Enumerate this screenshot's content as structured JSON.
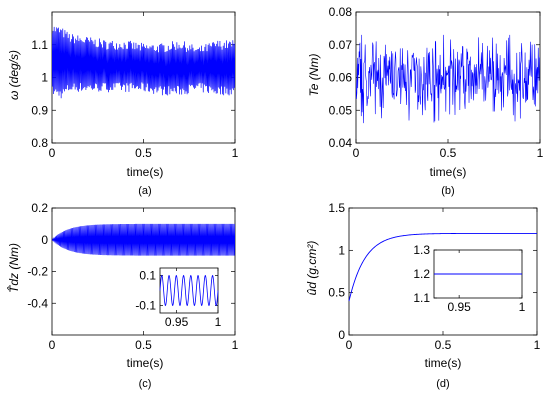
{
  "chart_data": [
    {
      "id": "a",
      "type": "line",
      "caption": "(a)",
      "xlabel": "time(s)",
      "ylabel": "ω (deg/s)",
      "xlim": [
        0,
        1
      ],
      "ylim": [
        0.8,
        1.2
      ],
      "xticks": [
        0,
        0.5,
        1
      ],
      "xtick_labels": [
        "0",
        "0.5",
        "1"
      ],
      "yticks": [
        0.8,
        0.9,
        1,
        1.1
      ],
      "ytick_labels": [
        "0.8",
        "0.9",
        "1",
        "1.1"
      ],
      "series": [
        {
          "color": "#0000ff",
          "x": [
            0,
            0.05,
            0.1,
            0.2,
            0.3,
            0.4,
            0.5,
            0.6,
            0.7,
            0.8,
            0.9,
            1.0
          ],
          "y_upper": [
            1.15,
            1.14,
            1.12,
            1.11,
            1.1,
            1.1,
            1.09,
            1.09,
            1.1,
            1.08,
            1.1,
            1.1
          ],
          "y_lower": [
            0.96,
            0.95,
            0.97,
            0.97,
            0.97,
            0.97,
            0.97,
            0.96,
            0.96,
            0.97,
            0.96,
            0.96
          ],
          "oscillation_cycles": 170
        }
      ]
    },
    {
      "id": "b",
      "type": "line",
      "caption": "(b)",
      "xlabel": "time(s)",
      "ylabel": "Te (Nm)",
      "xlim": [
        0,
        1
      ],
      "ylim": [
        0.04,
        0.08
      ],
      "xticks": [
        0,
        0.5,
        1
      ],
      "xtick_labels": [
        "0",
        "0.5",
        "1"
      ],
      "yticks": [
        0.04,
        0.05,
        0.06,
        0.07,
        0.08
      ],
      "ytick_labels": [
        "0.04",
        "0.05",
        "0.06",
        "0.07",
        "0.08"
      ],
      "series": [
        {
          "color": "#0000ff",
          "mean": 0.06,
          "min": 0.05,
          "max": 0.07,
          "noise": true
        }
      ]
    },
    {
      "id": "c",
      "type": "line",
      "caption": "(c)",
      "xlabel": "time(s)",
      "ylabel": "T̂dz (Nm)",
      "xlim": [
        0,
        1
      ],
      "ylim": [
        -0.6,
        0.2
      ],
      "xticks": [
        0,
        0.5,
        1
      ],
      "xtick_labels": [
        "0",
        "0.5",
        "1"
      ],
      "yticks": [
        -0.4,
        -0.2,
        0,
        0.2
      ],
      "ytick_labels": [
        "-0.4",
        "-0.2",
        "0",
        "0.2"
      ],
      "series": [
        {
          "color": "#0000ff",
          "amplitude_final": 0.1,
          "rise_time": 0.25,
          "oscillation_cycles": 160
        }
      ],
      "inset": {
        "xlim": [
          0.93,
          1.0
        ],
        "ylim": [
          -0.15,
          0.15
        ],
        "xticks": [
          0.95,
          1
        ],
        "xtick_labels": [
          "0.95",
          "1"
        ],
        "yticks": [
          -0.1,
          0.1
        ],
        "ytick_labels": [
          "-0.1",
          "0.1"
        ],
        "amplitude": 0.1,
        "cycles": 8
      }
    },
    {
      "id": "d",
      "type": "line",
      "caption": "(d)",
      "xlabel": "time(s)",
      "ylabel": "ûd (g.cm²)",
      "xlim": [
        0,
        1
      ],
      "ylim": [
        0,
        1.5
      ],
      "xticks": [
        0,
        0.5,
        1
      ],
      "xtick_labels": [
        "0",
        "0.5",
        "1"
      ],
      "yticks": [
        0,
        0.5,
        1,
        1.5
      ],
      "ytick_labels": [
        "0",
        "0.5",
        "1",
        "1.5"
      ],
      "series": [
        {
          "color": "#0000ff",
          "start": 0.4,
          "final": 1.2,
          "time_constant": 0.085
        }
      ],
      "inset": {
        "xlim": [
          0.93,
          1.0
        ],
        "ylim": [
          1.1,
          1.3
        ],
        "xticks": [
          0.95,
          1
        ],
        "xtick_labels": [
          "0.95",
          "1"
        ],
        "yticks": [
          1.1,
          1.2,
          1.3
        ],
        "ytick_labels": [
          "1.1",
          "1.2",
          "1.3"
        ],
        "value": 1.2
      }
    }
  ]
}
